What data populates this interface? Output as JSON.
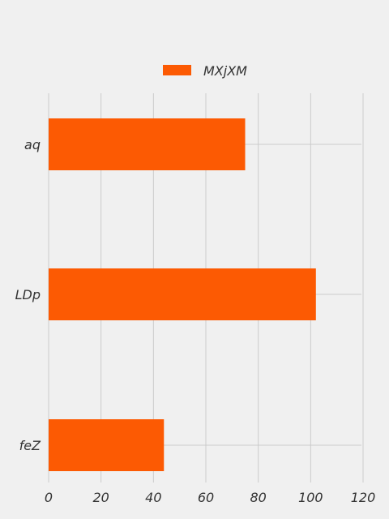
{
  "chart_data": {
    "type": "bar",
    "orientation": "horizontal",
    "categories": [
      "aq",
      "LDp",
      "feZ"
    ],
    "series": [
      {
        "name": "MXjXM",
        "values": [
          75,
          102,
          44
        ],
        "color": "#fc5a03"
      }
    ],
    "xlim": [
      0,
      120
    ],
    "xticks": [
      0,
      20,
      40,
      60,
      80,
      100,
      120
    ],
    "grid": true,
    "legend_position": "top-center",
    "title": "",
    "xlabel": "",
    "ylabel": ""
  }
}
